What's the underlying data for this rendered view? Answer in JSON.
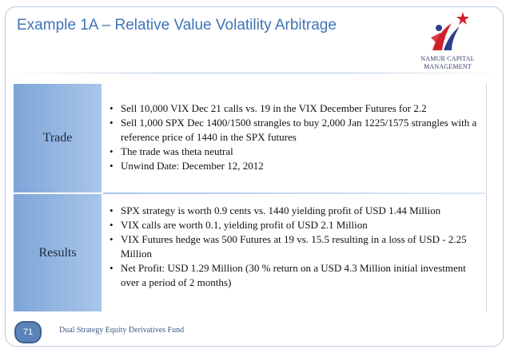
{
  "title": "Example 1A – Relative Value Volatility Arbitrage",
  "logo": {
    "line1": "NAMUR CAPITAL",
    "line2": "MANAGEMENT"
  },
  "table": {
    "rows": [
      {
        "label": "Trade",
        "bullets": [
          "Sell 10,000 VIX Dec 21 calls vs. 19 in the VIX December Futures for 2.2",
          "Sell 1,000 SPX Dec 1400/1500 strangles to buy 2,000 Jan 1225/1575 strangles with a reference price of 1440 in the SPX futures",
          "The trade was theta neutral",
          "Unwind Date: December 12, 2012"
        ]
      },
      {
        "label": "Results",
        "bullets": [
          "SPX strategy is worth 0.9 cents vs. 1440 yielding profit of USD 1.44 Million",
          "VIX calls are worth 0.1, yielding profit of USD 2.1 Million",
          "VIX Futures hedge was 500 Futures at 19 vs. 15.5 resulting in a loss of USD - 2.25 Million",
          "Net Profit: USD 1.29 Million (30 % return on a USD 4.3 Million initial investment over a period of 2 months)"
        ]
      }
    ]
  },
  "footer": {
    "page_number": "71",
    "text": "Dual Strategy Equity Derivatives Fund"
  },
  "colors": {
    "title": "#3f73b8",
    "header_fill": "#7ea5d8",
    "badge": "#5b83b9",
    "logo_red": "#d0202a",
    "logo_blue": "#2d3f8c"
  }
}
